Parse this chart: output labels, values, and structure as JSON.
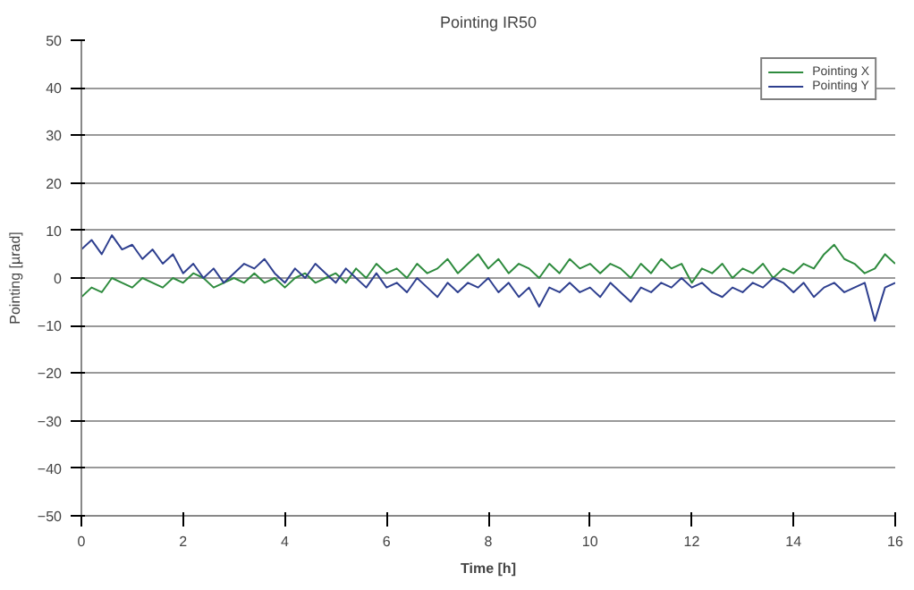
{
  "chart_data": {
    "type": "line",
    "title": "Pointing IR50",
    "xlabel": "Time [h]",
    "ylabel": "Pointing [µrad]",
    "xlim": [
      0,
      16
    ],
    "xticks": [
      0,
      2,
      4,
      6,
      8,
      10,
      12,
      14,
      16
    ],
    "ylim": [
      -50,
      50
    ],
    "yticks": [
      -50,
      -40,
      -30,
      -20,
      -10,
      0,
      10,
      20,
      30,
      40,
      50
    ],
    "grid": "y",
    "legend": "top right",
    "x": [
      0,
      0.2,
      0.4,
      0.6,
      0.8,
      1.0,
      1.2,
      1.4,
      1.6,
      1.8,
      2.0,
      2.2,
      2.4,
      2.6,
      2.8,
      3.0,
      3.2,
      3.4,
      3.6,
      3.8,
      4.0,
      4.2,
      4.4,
      4.6,
      4.8,
      5.0,
      5.2,
      5.4,
      5.6,
      5.8,
      6.0,
      6.2,
      6.4,
      6.6,
      6.8,
      7.0,
      7.2,
      7.4,
      7.6,
      7.8,
      8.0,
      8.2,
      8.4,
      8.6,
      8.8,
      9.0,
      9.2,
      9.4,
      9.6,
      9.8,
      10.0,
      10.2,
      10.4,
      10.6,
      10.8,
      11.0,
      11.2,
      11.4,
      11.6,
      11.8,
      12.0,
      12.2,
      12.4,
      12.6,
      12.8,
      13.0,
      13.2,
      13.4,
      13.6,
      13.8,
      14.0,
      14.2,
      14.4,
      14.6,
      14.8,
      15.0,
      15.2,
      15.4,
      15.6,
      15.8,
      16.0
    ],
    "series": [
      {
        "name": "Pointing X",
        "color": "#2e8b3e",
        "values": [
          -4,
          -2,
          -3,
          0,
          -1,
          -2,
          0,
          -1,
          -2,
          0,
          -1,
          1,
          0,
          -2,
          -1,
          0,
          -1,
          1,
          -1,
          0,
          -2,
          0,
          1,
          -1,
          0,
          1,
          -1,
          2,
          0,
          3,
          1,
          2,
          0,
          3,
          1,
          2,
          4,
          1,
          3,
          5,
          2,
          4,
          1,
          3,
          2,
          0,
          3,
          1,
          4,
          2,
          3,
          1,
          3,
          2,
          0,
          3,
          1,
          4,
          2,
          3,
          -1,
          2,
          1,
          3,
          0,
          2,
          1,
          3,
          0,
          2,
          1,
          3,
          2,
          5,
          7,
          4,
          3,
          1,
          2,
          5,
          3
        ]
      },
      {
        "name": "Pointing Y",
        "color": "#2e3f8f",
        "values": [
          6,
          8,
          5,
          9,
          6,
          7,
          4,
          6,
          3,
          5,
          1,
          3,
          0,
          2,
          -1,
          1,
          3,
          2,
          4,
          1,
          -1,
          2,
          0,
          3,
          1,
          -1,
          2,
          0,
          -2,
          1,
          -2,
          -1,
          -3,
          0,
          -2,
          -4,
          -1,
          -3,
          -1,
          -2,
          0,
          -3,
          -1,
          -4,
          -2,
          -6,
          -2,
          -3,
          -1,
          -3,
          -2,
          -4,
          -1,
          -3,
          -5,
          -2,
          -3,
          -1,
          -2,
          0,
          -2,
          -1,
          -3,
          -4,
          -2,
          -3,
          -1,
          -2,
          0,
          -1,
          -3,
          -1,
          -4,
          -2,
          -1,
          -3,
          -2,
          -1,
          -9,
          -2,
          -1
        ]
      }
    ]
  }
}
